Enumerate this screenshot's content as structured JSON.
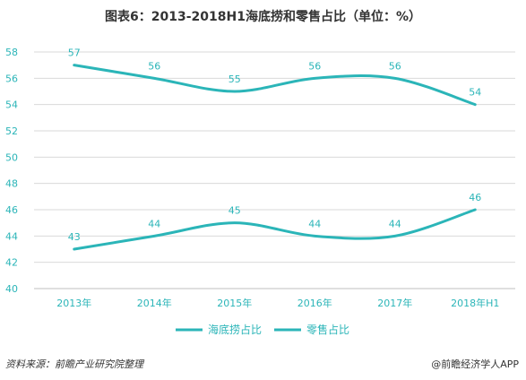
{
  "chart_data": {
    "type": "line",
    "title": "图表6：2013-2018H1海底捞和零售占比（单位：%）",
    "categories": [
      "2013年",
      "2014年",
      "2015年",
      "2016年",
      "2017年",
      "2018年H1"
    ],
    "series": [
      {
        "name": "海底捞占比",
        "values": [
          57,
          56,
          55,
          56,
          56,
          54
        ],
        "labels": [
          "57",
          "56",
          "55",
          "56",
          "56",
          "54"
        ]
      },
      {
        "name": "零售占比",
        "values": [
          43,
          44,
          45,
          44,
          44,
          46
        ],
        "labels": [
          "43",
          "44",
          "45",
          "44",
          "44",
          "46"
        ]
      }
    ],
    "ylim": [
      40,
      58
    ],
    "yticks": [
      "40",
      "42",
      "44",
      "46",
      "48",
      "50",
      "52",
      "54",
      "56",
      "58"
    ],
    "grid": true,
    "legend": "bottom",
    "color": "#2bb5b8"
  },
  "footer": {
    "source": "资料来源：前瞻产业研究院整理",
    "brand": "@前瞻经济学人APP"
  }
}
